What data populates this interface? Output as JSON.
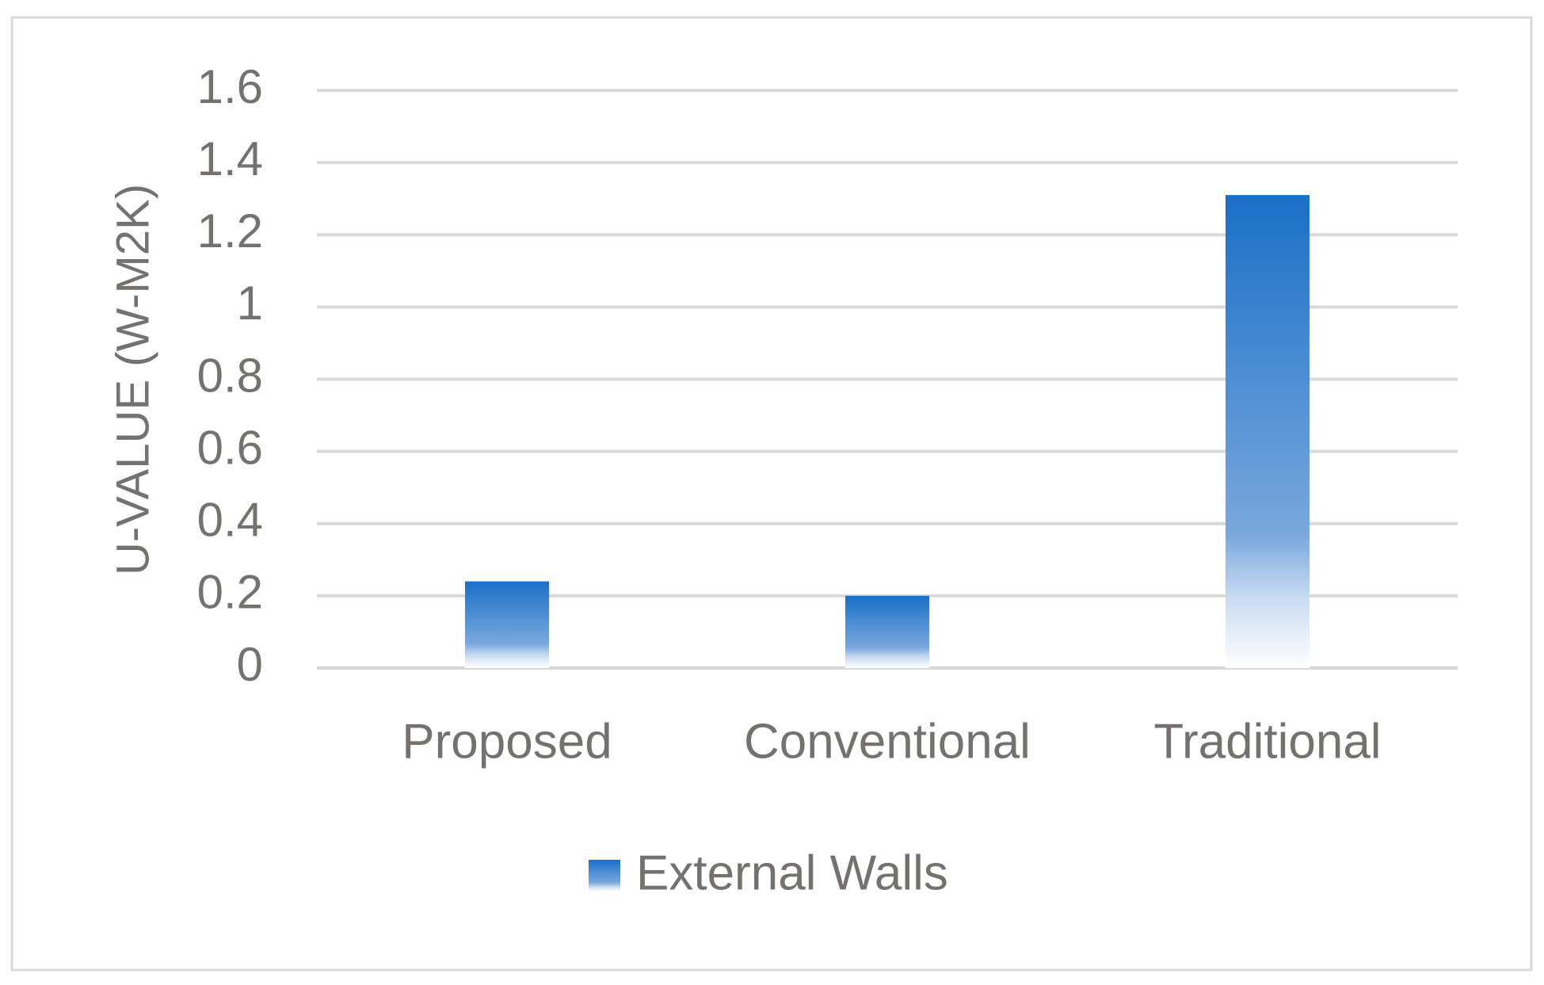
{
  "chart_data": {
    "type": "bar",
    "categories": [
      "Proposed",
      "Conventional",
      "Traditional"
    ],
    "values": [
      0.24,
      0.2,
      1.31
    ],
    "color": "#1f6fc6",
    "ylabel": "U-VALUE  (W-M2K)",
    "ylim": [
      0,
      1.6
    ],
    "yticks": [
      0,
      0.2,
      0.4,
      0.6,
      0.8,
      1,
      1.2,
      1.4,
      1.6
    ],
    "grid": true,
    "legend": {
      "position": "bottom",
      "labels": [
        "External Walls"
      ]
    }
  }
}
